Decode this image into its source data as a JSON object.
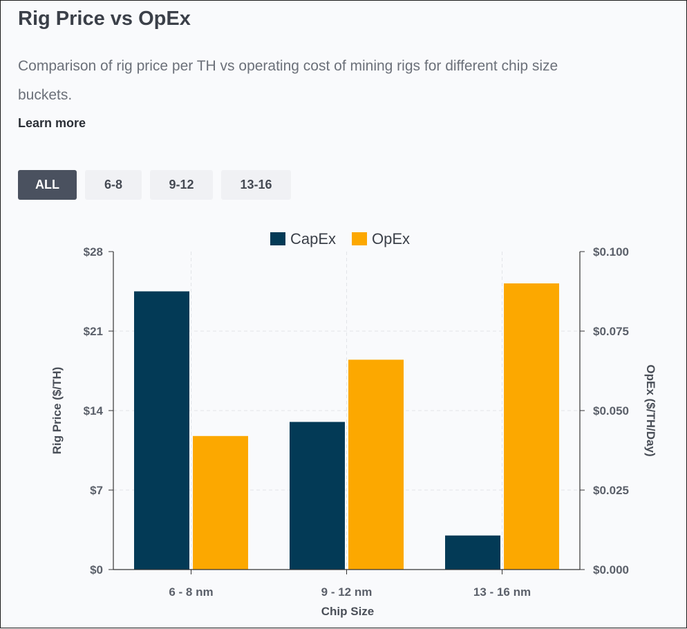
{
  "header": {
    "title": "Rig Price vs OpEx",
    "description": "Comparison of rig price per TH vs operating cost of mining rigs for different chip size buckets.",
    "learn_more": "Learn more"
  },
  "filters": [
    {
      "label": "ALL",
      "active": true
    },
    {
      "label": "6-8",
      "active": false
    },
    {
      "label": "9-12",
      "active": false
    },
    {
      "label": "13-16",
      "active": false
    }
  ],
  "colors": {
    "capex": "#033a56",
    "opex": "#fca800",
    "axis": "#333333",
    "grid": "#e2e4e8",
    "tick_text": "#5b606a"
  },
  "chart_data": {
    "type": "bar",
    "categories": [
      "6 - 8 nm",
      "9 - 12 nm",
      "13 - 16 nm"
    ],
    "xlabel": "Chip Size",
    "legend_position": "top",
    "grid": true,
    "series": [
      {
        "name": "CapEx",
        "axis": "left",
        "values": [
          24.5,
          13.0,
          3.0
        ]
      },
      {
        "name": "OpEx",
        "axis": "right",
        "values": [
          0.042,
          0.066,
          0.09
        ]
      }
    ],
    "left_axis": {
      "label": "Rig Price ($/TH)",
      "ylim": [
        0,
        28
      ],
      "ticks": [
        0,
        7,
        14,
        21,
        28
      ],
      "tick_labels": [
        "$0",
        "$7",
        "$14",
        "$21",
        "$28"
      ]
    },
    "right_axis": {
      "label": "OpEx ($/TH/Day)",
      "ylim": [
        0,
        0.1
      ],
      "ticks": [
        0,
        0.025,
        0.05,
        0.075,
        0.1
      ],
      "tick_labels": [
        "$0.000",
        "$0.025",
        "$0.050",
        "$0.075",
        "$0.100"
      ]
    }
  }
}
